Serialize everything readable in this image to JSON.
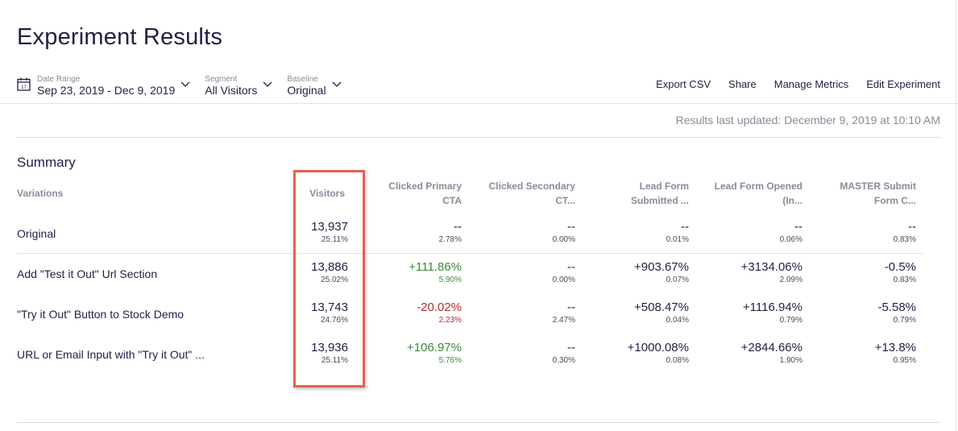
{
  "page": {
    "title": "Experiment Results"
  },
  "filters": {
    "date_range": {
      "label": "Date Range",
      "value": "Sep 23, 2019 - Dec 9, 2019",
      "icon": "calendar-icon",
      "icon_day": "17"
    },
    "segment": {
      "label": "Segment",
      "value": "All Visitors"
    },
    "baseline": {
      "label": "Baseline",
      "value": "Original"
    }
  },
  "actions": {
    "export_csv": "Export CSV",
    "share": "Share",
    "manage_metrics": "Manage Metrics",
    "edit_experiment": "Edit Experiment"
  },
  "status": {
    "last_updated": "Results last updated: December 9, 2019 at 10:10 AM"
  },
  "summary": {
    "title": "Summary",
    "headers": {
      "variations": "Variations",
      "visitors": "Visitors",
      "clicked_primary": [
        "Clicked Primary",
        "CTA"
      ],
      "clicked_secondary": [
        "Clicked Secondary",
        "CT..."
      ],
      "lead_form_submitted": [
        "Lead Form",
        "Submitted ..."
      ],
      "lead_form_opened": [
        "Lead Form Opened",
        "(In..."
      ],
      "master_submit": [
        "MASTER Submit",
        "Form C..."
      ]
    },
    "rows": [
      {
        "name": "Original",
        "visitors": {
          "count": "13,937",
          "pct": "25.11%"
        },
        "clicked_primary": {
          "value": "--",
          "rate": "2.78%"
        },
        "clicked_secondary": {
          "value": "--",
          "rate": "0.00%"
        },
        "lead_form_submitted": {
          "value": "--",
          "rate": "0.01%"
        },
        "lead_form_opened": {
          "value": "--",
          "rate": "0.06%"
        },
        "master_submit": {
          "value": "--",
          "rate": "0.83%"
        }
      },
      {
        "name": "Add \"Test it Out\" Url Section",
        "visitors": {
          "count": "13,886",
          "pct": "25.02%"
        },
        "clicked_primary": {
          "value": "+111.86%",
          "rate": "5.90%"
        },
        "clicked_secondary": {
          "value": "--",
          "rate": "0.00%"
        },
        "lead_form_submitted": {
          "value": "+903.67%",
          "rate": "0.07%"
        },
        "lead_form_opened": {
          "value": "+3134.06%",
          "rate": "2.09%"
        },
        "master_submit": {
          "value": "-0.5%",
          "rate": "0.83%"
        }
      },
      {
        "name": "\"Try it Out\" Button to Stock Demo",
        "visitors": {
          "count": "13,743",
          "pct": "24.76%"
        },
        "clicked_primary": {
          "value": "-20.02%",
          "rate": "2.23%"
        },
        "clicked_secondary": {
          "value": "--",
          "rate": "2.47%"
        },
        "lead_form_submitted": {
          "value": "+508.47%",
          "rate": "0.04%"
        },
        "lead_form_opened": {
          "value": "+1116.94%",
          "rate": "0.79%"
        },
        "master_submit": {
          "value": "-5.58%",
          "rate": "0.79%"
        }
      },
      {
        "name": "URL or Email Input with \"Try it Out\" ...",
        "visitors": {
          "count": "13,936",
          "pct": "25.11%"
        },
        "clicked_primary": {
          "value": "+106.97%",
          "rate": "5.76%"
        },
        "clicked_secondary": {
          "value": "--",
          "rate": "0.30%"
        },
        "lead_form_submitted": {
          "value": "+1000.08%",
          "rate": "0.08%"
        },
        "lead_form_opened": {
          "value": "+2844.66%",
          "rate": "1.90%"
        },
        "master_submit": {
          "value": "+13.8%",
          "rate": "0.95%"
        }
      }
    ]
  },
  "colors": {
    "positive": "#3a8a3a",
    "negative": "#b32b2b",
    "highlight": "#e8604f"
  }
}
